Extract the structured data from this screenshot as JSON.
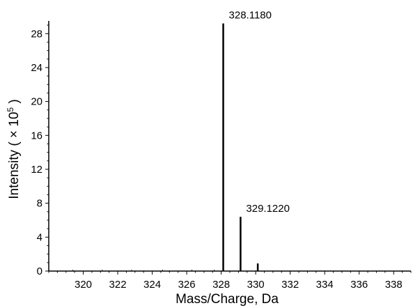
{
  "chart_data": {
    "type": "bar",
    "xlabel": "Mass/Charge, Da",
    "ylabel": "Intensity ( × 10",
    "ylabel_sup": "5",
    "ylabel_end": ")",
    "xlim": [
      318,
      339
    ],
    "ylim": [
      0,
      29.5
    ],
    "xticks": [
      320,
      322,
      324,
      326,
      328,
      330,
      332,
      334,
      336,
      338
    ],
    "yticks": [
      0,
      4,
      8,
      12,
      16,
      20,
      24,
      28
    ],
    "peaks": [
      {
        "x": 328.118,
        "y": 29.2,
        "label": "328.1180"
      },
      {
        "x": 329.122,
        "y": 6.4,
        "label": "329.1220"
      },
      {
        "x": 330.12,
        "y": 0.9,
        "label": ""
      }
    ],
    "grid": false,
    "legend": "none"
  }
}
